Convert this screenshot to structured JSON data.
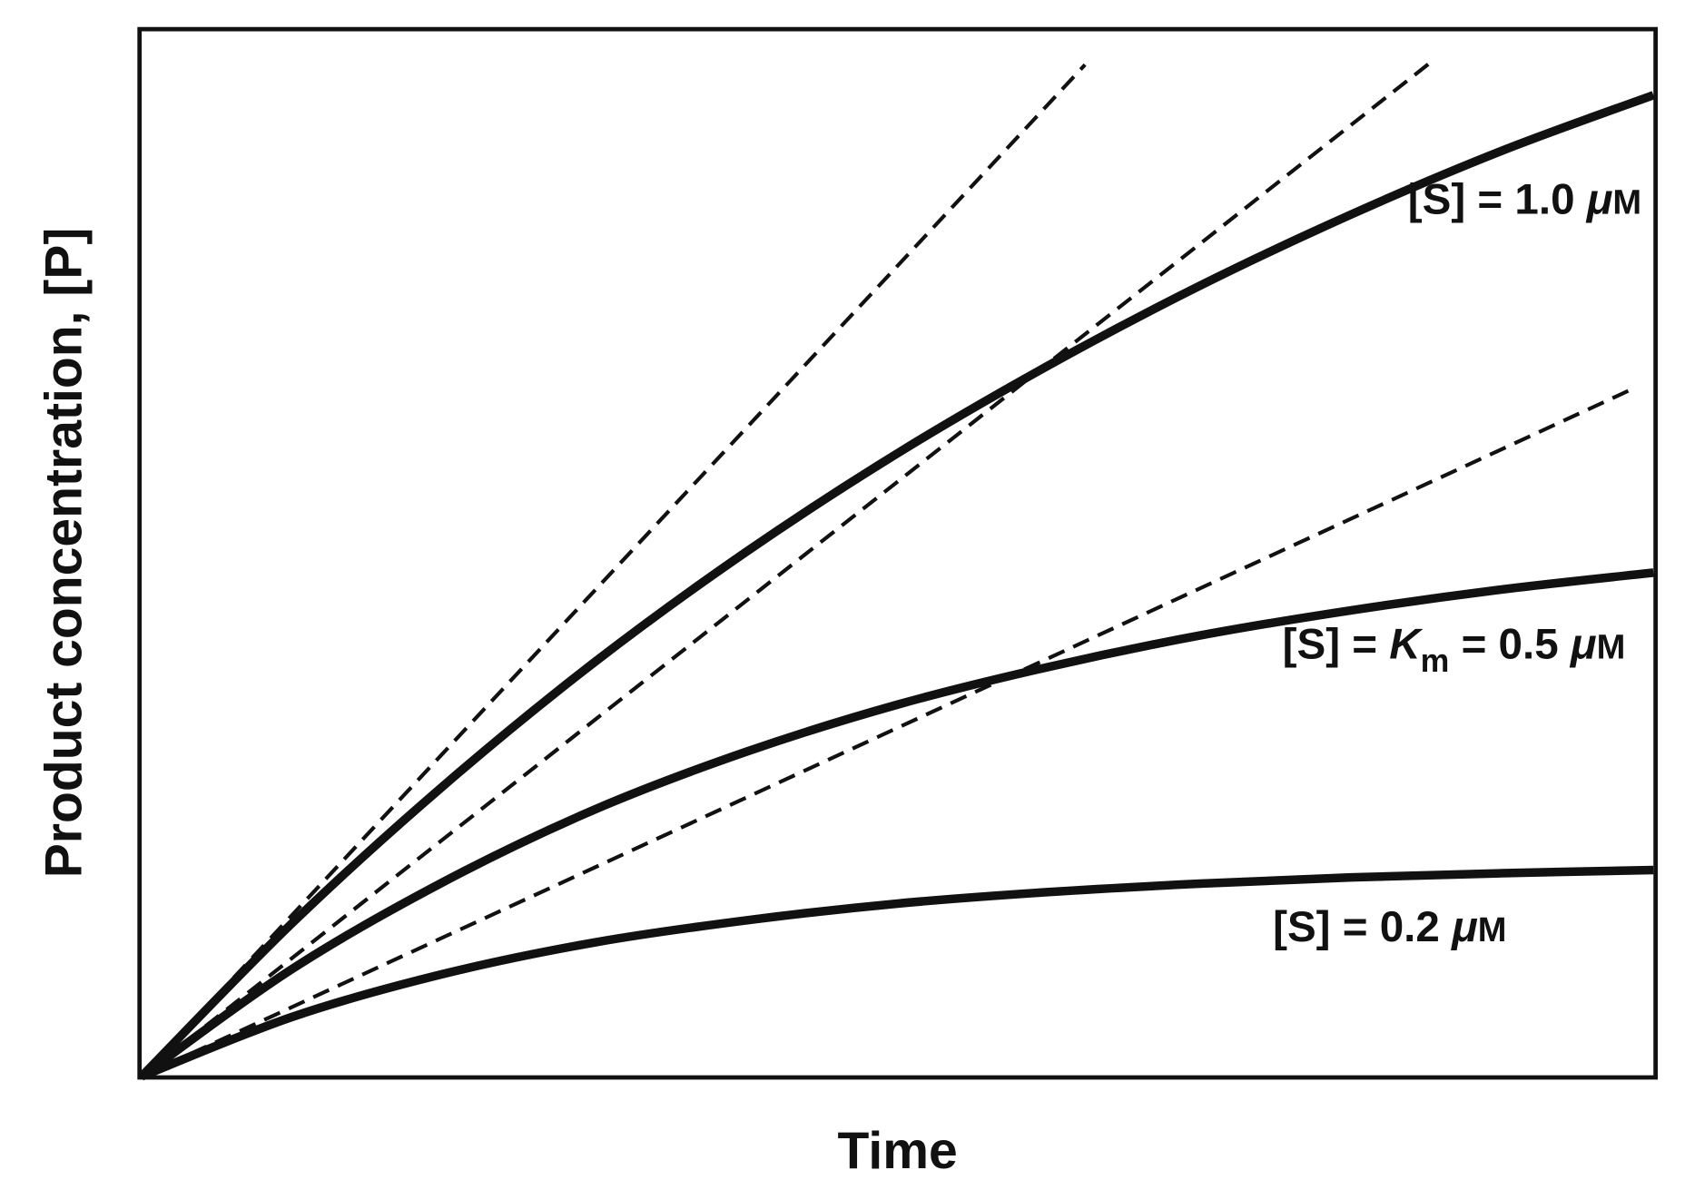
{
  "chart_data": {
    "type": "line",
    "title": "",
    "xlabel": "Time",
    "ylabel": "Product concentration, [P]",
    "xlim": [
      0,
      1
    ],
    "ylim": [
      0,
      1
    ],
    "grid": false,
    "ticks": false,
    "x": [
      0,
      0.1,
      0.2,
      0.3,
      0.4,
      0.5,
      0.6,
      0.7,
      0.8,
      0.9,
      1.0
    ],
    "series": [
      {
        "name": "[S] = 1.0 μM",
        "style": "solid",
        "values": [
          0,
          0.147,
          0.278,
          0.396,
          0.501,
          0.595,
          0.679,
          0.755,
          0.823,
          0.884,
          0.937
        ]
      },
      {
        "name": "[S] = Km = 0.5 μM",
        "style": "solid",
        "values": [
          0,
          0.103,
          0.186,
          0.255,
          0.31,
          0.355,
          0.391,
          0.421,
          0.445,
          0.465,
          0.481
        ]
      },
      {
        "name": "[S] = 0.2 μM",
        "style": "solid",
        "values": [
          0,
          0.057,
          0.098,
          0.128,
          0.149,
          0.165,
          0.176,
          0.184,
          0.19,
          0.194,
          0.197
        ]
      }
    ],
    "tangent_lines": [
      {
        "style": "dashed",
        "for": "[S] = 1.0 μM",
        "points": [
          [
            0,
            0
          ],
          [
            0.624,
            0.966
          ]
        ]
      },
      {
        "style": "dashed",
        "for": "[S] = Km = 0.5 μM",
        "points": [
          [
            0,
            0
          ],
          [
            0.855,
            0.971
          ]
        ]
      },
      {
        "style": "dashed",
        "for": "[S] = 0.2 μM",
        "points": [
          [
            0,
            0
          ],
          [
            0.984,
            0.655
          ]
        ]
      }
    ],
    "labels": {
      "s10": {
        "prefix": "[S] = 1.0 ",
        "mu": "μ",
        "unit": "M"
      },
      "s05": {
        "prefix": "[S] = ",
        "k": "K",
        "sub": "m",
        "mid": " = 0.5 ",
        "mu": "μ",
        "unit": "M"
      },
      "s02": {
        "prefix": "[S] = 0.2 ",
        "mu": "μ",
        "unit": "M"
      }
    },
    "line_color": "#111111"
  }
}
